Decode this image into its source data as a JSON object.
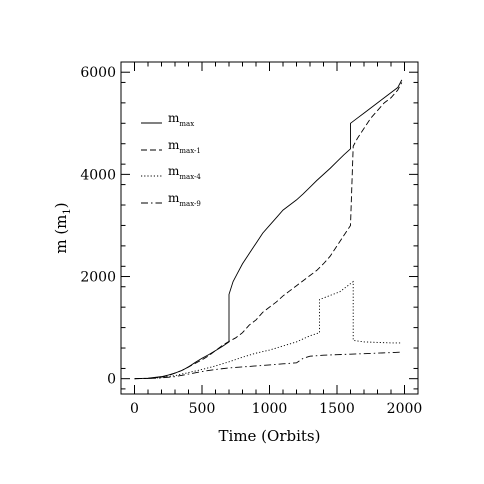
{
  "chart_data": {
    "type": "line",
    "title": "",
    "xlabel": "Time (Orbits)",
    "ylabel_main": "m (m",
    "ylabel_sub": "1",
    "ylabel_close": ")",
    "xlim": [
      -100,
      2100
    ],
    "ylim": [
      -300,
      6200
    ],
    "xticks": [
      0,
      500,
      1000,
      1500,
      2000
    ],
    "yticks": [
      0,
      2000,
      4000,
      6000
    ],
    "xtick_labels": [
      "0",
      "500",
      "1000",
      "1500",
      "2000"
    ],
    "ytick_labels": [
      "0",
      "2000",
      "4000",
      "6000"
    ],
    "legend_position": "upper-left",
    "series": [
      {
        "label": "m",
        "label_sub": "max",
        "dash": "solid",
        "x": [
          0,
          100,
          200,
          250,
          300,
          350,
          400,
          450,
          500,
          550,
          600,
          650,
          700,
          700,
          730,
          760,
          800,
          850,
          900,
          950,
          1000,
          1050,
          1100,
          1150,
          1200,
          1250,
          1300,
          1350,
          1400,
          1450,
          1500,
          1550,
          1600,
          1600,
          1650,
          1700,
          1750,
          1800,
          1850,
          1900,
          1950,
          1980
        ],
        "y": [
          0,
          10,
          40,
          70,
          110,
          160,
          230,
          320,
          400,
          470,
          550,
          630,
          720,
          1650,
          1900,
          2050,
          2250,
          2450,
          2650,
          2850,
          3000,
          3150,
          3300,
          3400,
          3500,
          3620,
          3750,
          3880,
          4000,
          4120,
          4250,
          4380,
          4500,
          5000,
          5100,
          5200,
          5300,
          5400,
          5500,
          5600,
          5700,
          5850
        ]
      },
      {
        "label": "m",
        "label_sub": "max-1",
        "dash": "dashed",
        "x": [
          0,
          100,
          200,
          250,
          300,
          350,
          400,
          450,
          500,
          550,
          600,
          650,
          700,
          750,
          800,
          850,
          900,
          950,
          1000,
          1050,
          1100,
          1150,
          1200,
          1250,
          1300,
          1350,
          1400,
          1450,
          1500,
          1550,
          1600,
          1620,
          1650,
          1700,
          1750,
          1800,
          1850,
          1900,
          1950,
          1980
        ],
        "y": [
          0,
          5,
          30,
          60,
          110,
          160,
          230,
          300,
          370,
          450,
          550,
          650,
          730,
          800,
          900,
          1050,
          1150,
          1300,
          1400,
          1500,
          1620,
          1720,
          1820,
          1920,
          2020,
          2120,
          2250,
          2400,
          2600,
          2800,
          3000,
          4550,
          4700,
          4900,
          5100,
          5250,
          5400,
          5500,
          5650,
          5800
        ]
      },
      {
        "label": "m",
        "label_sub": "max-4",
        "dash": "dotted",
        "x": [
          0,
          100,
          200,
          300,
          400,
          500,
          600,
          700,
          800,
          900,
          1000,
          1100,
          1200,
          1300,
          1370,
          1370,
          1420,
          1470,
          1520,
          1570,
          1620,
          1620,
          1700,
          1800,
          1900,
          1980
        ],
        "y": [
          0,
          5,
          20,
          60,
          120,
          180,
          250,
          330,
          420,
          500,
          560,
          640,
          720,
          840,
          900,
          1550,
          1600,
          1650,
          1700,
          1800,
          1900,
          750,
          720,
          710,
          700,
          700
        ]
      },
      {
        "label": "m",
        "label_sub": "max-9",
        "dash": "dashdot",
        "x": [
          0,
          100,
          200,
          300,
          400,
          500,
          600,
          700,
          800,
          900,
          1000,
          1100,
          1200,
          1250,
          1300,
          1400,
          1500,
          1600,
          1700,
          1800,
          1900,
          1980
        ],
        "y": [
          0,
          5,
          15,
          40,
          90,
          140,
          180,
          210,
          230,
          250,
          270,
          290,
          310,
          400,
          440,
          460,
          470,
          480,
          490,
          500,
          510,
          520
        ]
      }
    ]
  }
}
